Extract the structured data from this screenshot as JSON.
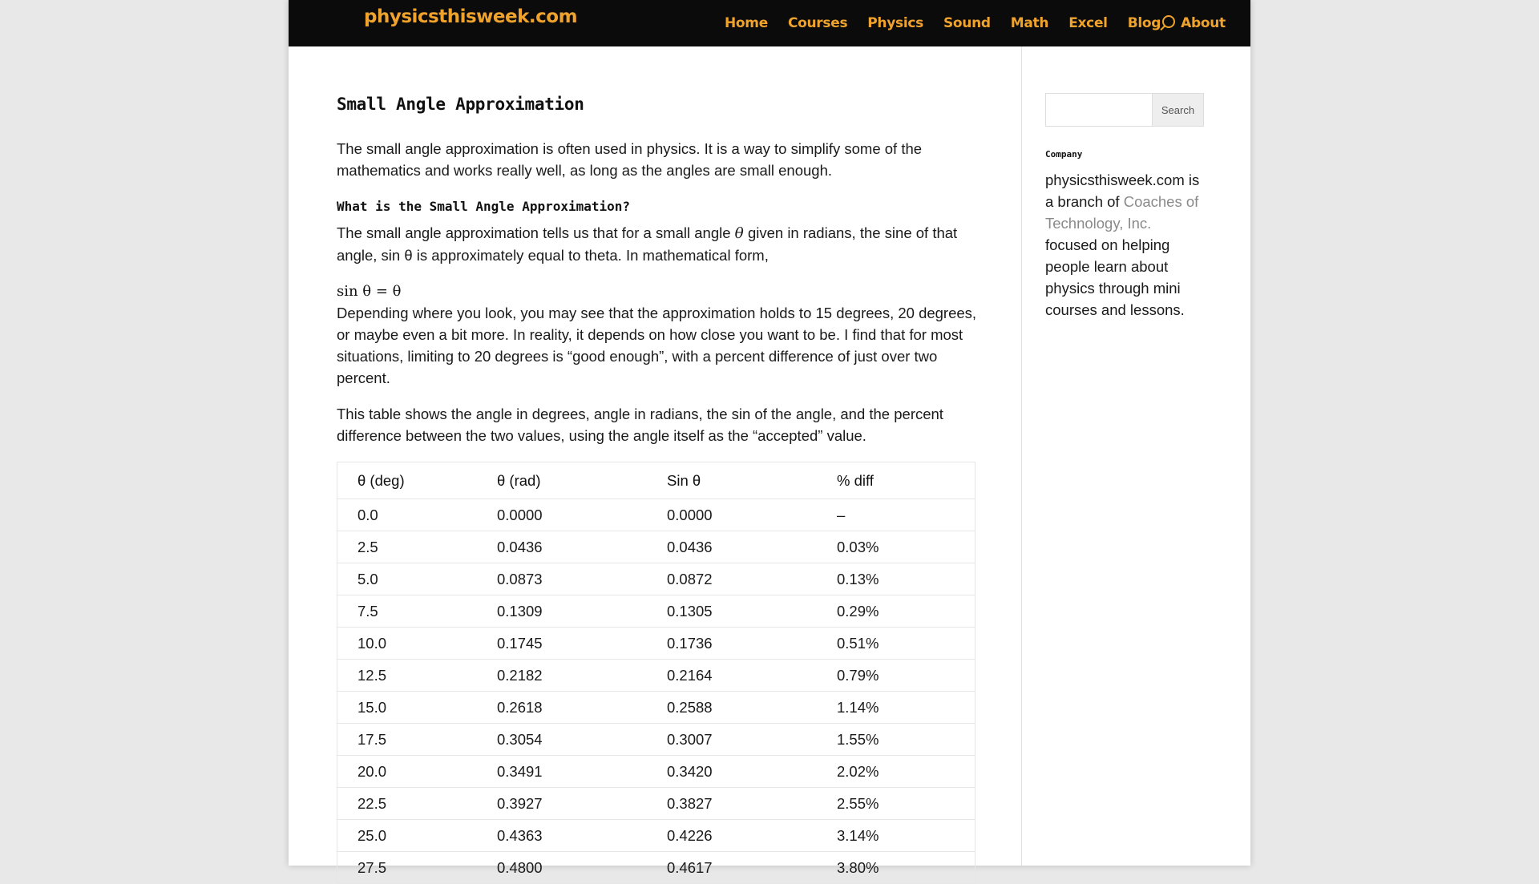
{
  "header": {
    "logo": "physicsthisweek.com",
    "nav": [
      "Home",
      "Courses",
      "Physics",
      "Sound",
      "Math",
      "Excel",
      "Blog",
      "About"
    ]
  },
  "article": {
    "title": "Small Angle Approximation",
    "intro": "The small angle approximation is often used in physics.  It is a way to simplify some of the mathematics and works really well, as long as the angles are small enough.",
    "subheading": "What is the Small Angle Approximation?",
    "definition_pre": "The small angle approximation tells us that for a small angle ",
    "definition_symbol": "θ",
    "definition_post": " given in radians, the sine of that angle, sin θ is approximately equal to theta.  In mathematical form,",
    "formula": "sin θ = θ",
    "discussion": "Depending where you look, you may see that the approximation holds to 15 degrees, 20 degrees, or maybe even a bit more. In reality, it depends on how close you want to be. I find that for most situations, limiting to 20 degrees is “good enough”, with a percent difference of just over two percent.",
    "table_intro": "This table shows the angle in degrees, angle in radians, the sin of the angle, and the percent difference between the two values, using the angle itself as the “accepted” value."
  },
  "table": {
    "headers": [
      "θ (deg)",
      "θ (rad)",
      "Sin θ",
      "% diff"
    ],
    "rows": [
      [
        "0.0",
        "0.0000",
        "0.0000",
        "–"
      ],
      [
        "2.5",
        "0.0436",
        "0.0436",
        "0.03%"
      ],
      [
        "5.0",
        "0.0873",
        "0.0872",
        "0.13%"
      ],
      [
        "7.5",
        "0.1309",
        "0.1305",
        "0.29%"
      ],
      [
        "10.0",
        "0.1745",
        "0.1736",
        "0.51%"
      ],
      [
        "12.5",
        "0.2182",
        "0.2164",
        "0.79%"
      ],
      [
        "15.0",
        "0.2618",
        "0.2588",
        "1.14%"
      ],
      [
        "17.5",
        "0.3054",
        "0.3007",
        "1.55%"
      ],
      [
        "20.0",
        "0.3491",
        "0.3420",
        "2.02%"
      ],
      [
        "22.5",
        "0.3927",
        "0.3827",
        "2.55%"
      ],
      [
        "25.0",
        "0.4363",
        "0.4226",
        "3.14%"
      ],
      [
        "27.5",
        "0.4800",
        "0.4617",
        "3.80%"
      ]
    ]
  },
  "sidebar": {
    "search_placeholder": "",
    "search_button": "Search",
    "widget_title": "Company",
    "text_pre": "physicsthisweek.com is a branch of ",
    "link_text": "Coaches of Technology, Inc.",
    "text_post": " focused on helping people learn about physics through mini courses and lessons."
  },
  "colors": {
    "accent": "#f0a32c",
    "topbar": "#0b0b0b",
    "background": "#e8e8e8",
    "link": "#8a8a8a"
  }
}
